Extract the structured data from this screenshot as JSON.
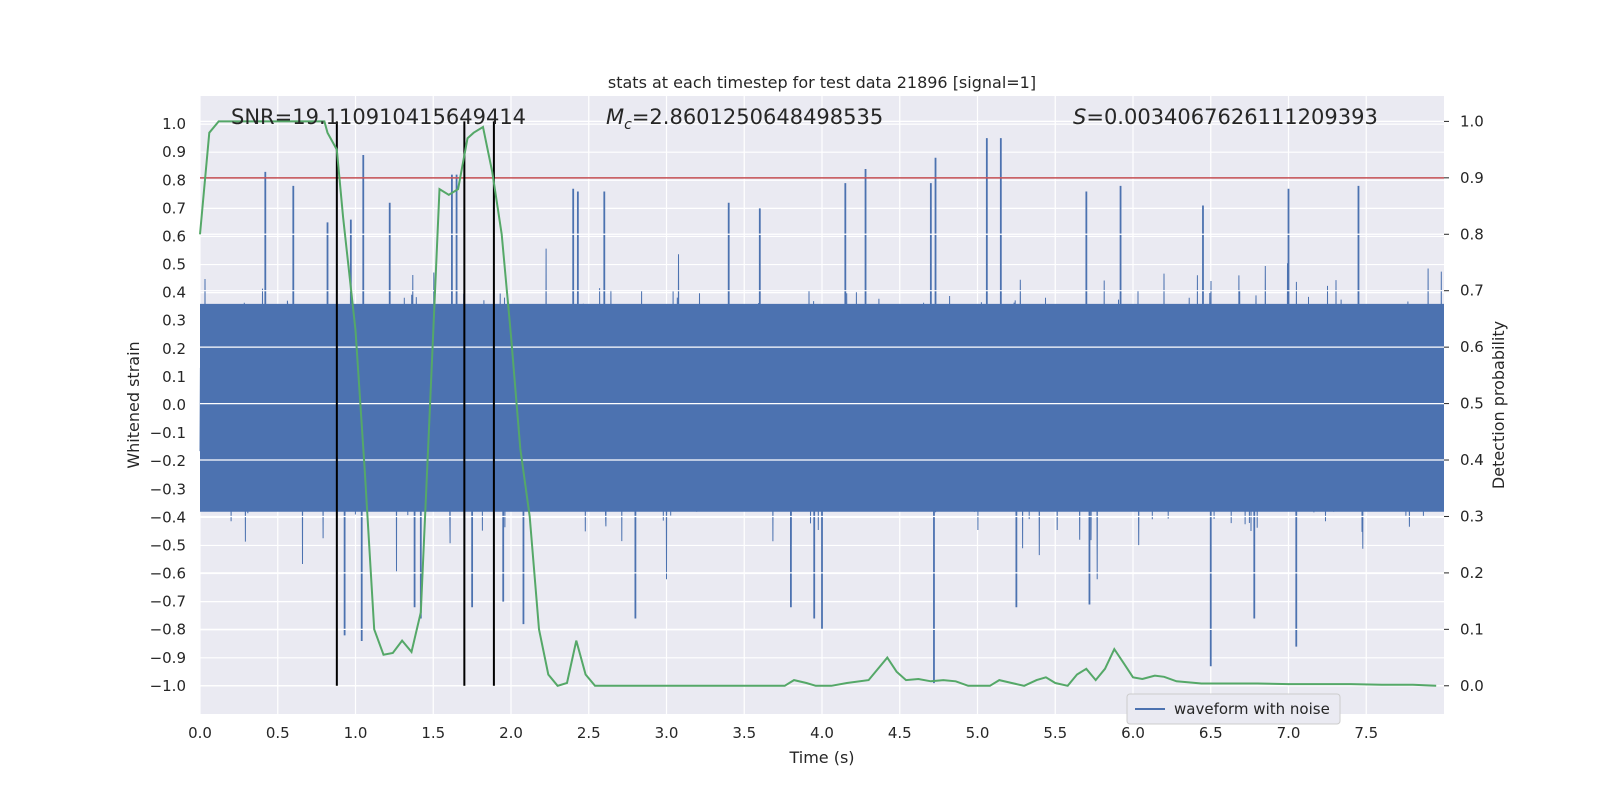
{
  "chart_data": {
    "type": "line",
    "title": "stats at each timestep for test data 21896 [signal=1]",
    "xlabel": "Time (s)",
    "ylabel": "Whitened strain",
    "y2label": "Detection probability",
    "xlim": [
      0.0,
      8.0
    ],
    "ylim": [
      -1.1,
      1.1
    ],
    "y2lim": [
      -0.05,
      1.045
    ],
    "xticks": [
      0.0,
      0.5,
      1.0,
      1.5,
      2.0,
      2.5,
      3.0,
      3.5,
      4.0,
      4.5,
      5.0,
      5.5,
      6.0,
      6.5,
      7.0,
      7.5
    ],
    "xtick_labels": [
      "0.0",
      "0.5",
      "1.0",
      "1.5",
      "2.0",
      "2.5",
      "3.0",
      "3.5",
      "4.0",
      "4.5",
      "5.0",
      "5.5",
      "6.0",
      "6.5",
      "7.0",
      "7.5"
    ],
    "yticks": [
      1.0,
      0.9,
      0.8,
      0.7,
      0.6,
      0.5,
      0.4,
      0.3,
      0.2,
      0.1,
      0.0,
      -0.1,
      -0.2,
      -0.3,
      -0.4,
      -0.5,
      -0.6,
      -0.7,
      -0.8,
      -0.9,
      -1.0
    ],
    "ytick_labels": [
      "1.0",
      "0.9",
      "0.8",
      "0.7",
      "0.6",
      "0.5",
      "0.4",
      "0.3",
      "0.2",
      "0.1",
      "0.0",
      "−0.1",
      "−0.2",
      "−0.3",
      "−0.4",
      "−0.5",
      "−0.6",
      "−0.7",
      "−0.8",
      "−0.9",
      "−1.0"
    ],
    "y2ticks": [
      1.0,
      0.9,
      0.8,
      0.7,
      0.6,
      0.5,
      0.4,
      0.3,
      0.2,
      0.1,
      0.0
    ],
    "y2tick_labels": [
      "1.0",
      "0.9",
      "0.8",
      "0.7",
      "0.6",
      "0.5",
      "0.4",
      "0.3",
      "0.2",
      "0.1",
      "0.0"
    ],
    "annotations": {
      "snr": "SNR=19.110910415649414",
      "mc_symbol": "M",
      "mc_sub": "c",
      "mc_value": "=2.8601250648498535",
      "s_symbol": "S",
      "s_value": "=0.0034067626111209393"
    },
    "threshold": {
      "value": 0.9,
      "axis": "y2",
      "color": "#c44e52"
    },
    "event_markers_x": [
      0.88,
      1.7,
      1.89
    ],
    "legend": {
      "label": "waveform with noise",
      "position": "lower-right"
    },
    "series": [
      {
        "name": "waveform with noise",
        "axis": "y",
        "color": "#4c72b0",
        "style": "dense-noise",
        "typical_envelope": [
          -0.38,
          0.36
        ],
        "spikes": [
          {
            "x": 0.42,
            "y": 0.83
          },
          {
            "x": 0.6,
            "y": 0.78
          },
          {
            "x": 0.82,
            "y": 0.65
          },
          {
            "x": 0.97,
            "y": 0.66
          },
          {
            "x": 0.93,
            "y": -0.82
          },
          {
            "x": 1.05,
            "y": 0.89
          },
          {
            "x": 1.04,
            "y": -0.84
          },
          {
            "x": 1.22,
            "y": 0.72
          },
          {
            "x": 1.38,
            "y": -0.72
          },
          {
            "x": 1.42,
            "y": -0.76
          },
          {
            "x": 1.62,
            "y": 0.82
          },
          {
            "x": 1.65,
            "y": 0.82
          },
          {
            "x": 1.75,
            "y": -0.72
          },
          {
            "x": 1.95,
            "y": -0.7
          },
          {
            "x": 2.08,
            "y": -0.78
          },
          {
            "x": 2.4,
            "y": 0.77
          },
          {
            "x": 2.43,
            "y": 0.76
          },
          {
            "x": 2.6,
            "y": 0.76
          },
          {
            "x": 2.8,
            "y": -0.76
          },
          {
            "x": 3.4,
            "y": 0.72
          },
          {
            "x": 3.6,
            "y": 0.7
          },
          {
            "x": 3.8,
            "y": -0.72
          },
          {
            "x": 3.95,
            "y": -0.76
          },
          {
            "x": 4.0,
            "y": -0.8
          },
          {
            "x": 4.15,
            "y": 0.79
          },
          {
            "x": 4.28,
            "y": 0.84
          },
          {
            "x": 4.7,
            "y": 0.79
          },
          {
            "x": 4.72,
            "y": -0.99
          },
          {
            "x": 4.73,
            "y": 0.88
          },
          {
            "x": 5.06,
            "y": 0.95
          },
          {
            "x": 5.15,
            "y": 0.95
          },
          {
            "x": 5.25,
            "y": -0.72
          },
          {
            "x": 5.7,
            "y": 0.76
          },
          {
            "x": 5.72,
            "y": -0.71
          },
          {
            "x": 5.92,
            "y": 0.78
          },
          {
            "x": 6.45,
            "y": 0.71
          },
          {
            "x": 6.5,
            "y": -0.93
          },
          {
            "x": 6.78,
            "y": -0.76
          },
          {
            "x": 7.0,
            "y": 0.77
          },
          {
            "x": 7.05,
            "y": -0.86
          },
          {
            "x": 7.45,
            "y": 0.78
          }
        ]
      },
      {
        "name": "detection probability",
        "axis": "y2",
        "color": "#55a868",
        "x": [
          0.0,
          0.06,
          0.12,
          0.25,
          0.4,
          0.55,
          0.7,
          0.8,
          0.82,
          0.88,
          0.92,
          1.0,
          1.06,
          1.12,
          1.18,
          1.24,
          1.3,
          1.36,
          1.42,
          1.48,
          1.54,
          1.6,
          1.66,
          1.72,
          1.76,
          1.82,
          1.88,
          1.94,
          2.0,
          2.06,
          2.12,
          2.18,
          2.24,
          2.3,
          2.36,
          2.42,
          2.48,
          2.54,
          2.6,
          2.8,
          3.0,
          3.2,
          3.4,
          3.6,
          3.76,
          3.82,
          3.9,
          3.96,
          4.06,
          4.16,
          4.3,
          4.42,
          4.48,
          4.54,
          4.62,
          4.7,
          4.78,
          4.86,
          4.94,
          5.0,
          5.08,
          5.14,
          5.22,
          5.3,
          5.38,
          5.44,
          5.5,
          5.58,
          5.64,
          5.7,
          5.76,
          5.82,
          5.88,
          5.94,
          6.0,
          6.06,
          6.14,
          6.2,
          6.28,
          6.36,
          6.44,
          6.6,
          6.8,
          7.0,
          7.2,
          7.4,
          7.6,
          7.8,
          7.95
        ],
        "y": [
          0.8,
          0.98,
          1.0,
          1.0,
          1.0,
          1.0,
          1.0,
          1.0,
          0.98,
          0.95,
          0.83,
          0.63,
          0.38,
          0.1,
          0.055,
          0.058,
          0.08,
          0.06,
          0.13,
          0.5,
          0.88,
          0.87,
          0.88,
          0.97,
          0.98,
          0.99,
          0.91,
          0.8,
          0.62,
          0.42,
          0.3,
          0.1,
          0.02,
          0.0,
          0.005,
          0.08,
          0.02,
          0.0,
          0.0,
          0.0,
          0.0,
          0.0,
          0.0,
          0.0,
          0.0,
          0.01,
          0.005,
          0.0,
          0.0,
          0.005,
          0.01,
          0.05,
          0.025,
          0.01,
          0.012,
          0.008,
          0.01,
          0.008,
          0.0,
          0.0,
          0.0,
          0.01,
          0.005,
          0.0,
          0.01,
          0.015,
          0.005,
          0.0,
          0.02,
          0.03,
          0.01,
          0.03,
          0.065,
          0.04,
          0.015,
          0.012,
          0.018,
          0.016,
          0.008,
          0.006,
          0.004,
          0.004,
          0.004,
          0.003,
          0.003,
          0.003,
          0.002,
          0.002,
          0.0
        ]
      }
    ]
  }
}
